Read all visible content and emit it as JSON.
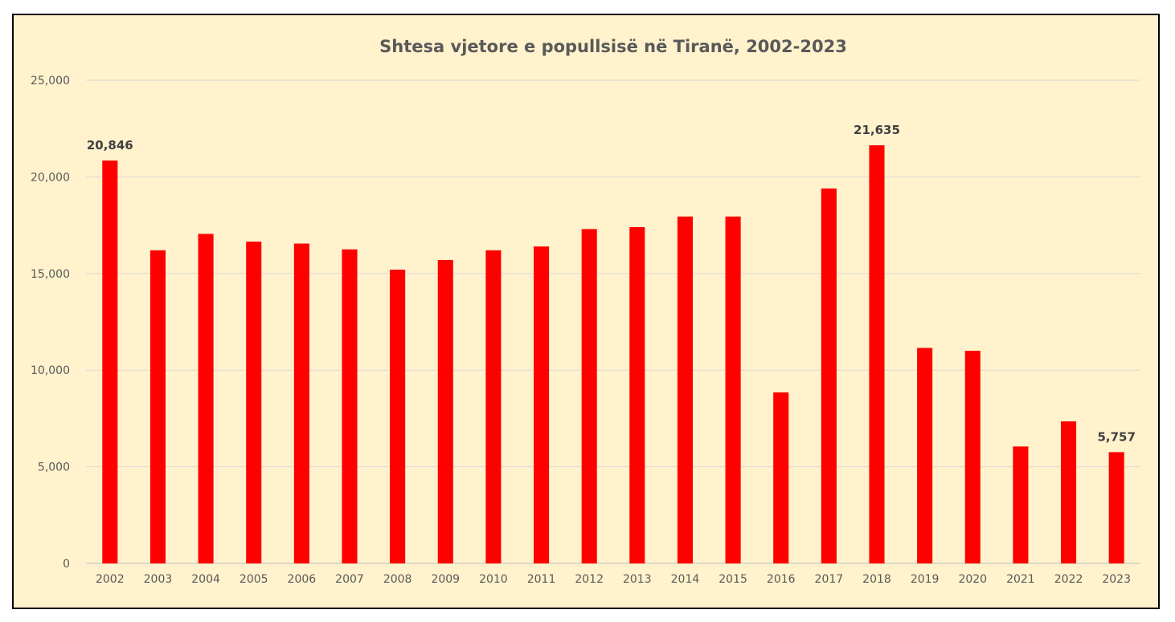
{
  "chart_data": {
    "type": "bar",
    "title": "Shtesa vjetore e popullsisë në Tiranë, 2002-2023",
    "xlabel": "",
    "ylabel": "",
    "ylim": [
      0,
      25000
    ],
    "yticks": [
      0,
      5000,
      10000,
      15000,
      20000,
      25000
    ],
    "ytick_labels": [
      "0",
      "5,000",
      "10,000",
      "15,000",
      "20,000",
      "25,000"
    ],
    "grid": true,
    "legend": "none",
    "bar_color": "#ff0000",
    "categories": [
      "2002",
      "2003",
      "2004",
      "2005",
      "2006",
      "2007",
      "2008",
      "2009",
      "2010",
      "2011",
      "2012",
      "2013",
      "2014",
      "2015",
      "2016",
      "2017",
      "2018",
      "2019",
      "2020",
      "2021",
      "2022",
      "2023"
    ],
    "values": [
      20846,
      16200,
      17050,
      16650,
      16550,
      16250,
      15200,
      15700,
      16200,
      16400,
      17300,
      17400,
      17950,
      17950,
      8850,
      19400,
      21635,
      11150,
      11000,
      6050,
      7350,
      5757
    ],
    "data_labels": [
      {
        "category": "2002",
        "text": "20,846"
      },
      {
        "category": "2018",
        "text": "21,635"
      },
      {
        "category": "2023",
        "text": "5,757"
      }
    ]
  }
}
